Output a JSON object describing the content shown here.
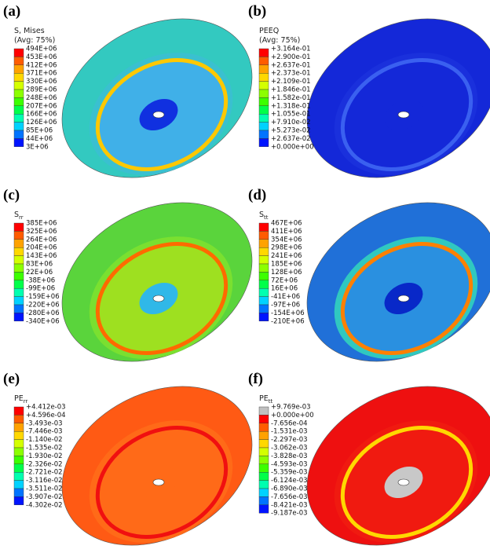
{
  "panels": [
    {
      "label": "(a)",
      "legend_title": [
        "S, Mises",
        "(Avg: 75%)"
      ],
      "legend_labels": [
        "494E+06",
        "453E+06",
        "412E+06",
        "371E+06",
        "330E+06",
        "289E+06",
        "248E+06",
        "207E+06",
        "166E+06",
        "126E+06",
        "85E+06",
        "44E+06",
        "3E+06"
      ]
    },
    {
      "label": "(b)",
      "legend_title": [
        "PEEQ",
        "(Avg: 75%)"
      ],
      "legend_labels": [
        "+3.164e-01",
        "+2.900e-01",
        "+2.637e-01",
        "+2.373e-01",
        "+2.109e-01",
        "+1.846e-01",
        "+1.582e-01",
        "+1.318e-01",
        "+1.055e-01",
        "+7.910e-02",
        "+5.273e-02",
        "+2.637e-02",
        "+0.000e+00"
      ]
    },
    {
      "label": "(c)",
      "legend_title": [
        "S"
      ],
      "legend_subscript": "rr",
      "legend_labels": [
        "385E+06",
        "325E+06",
        "264E+06",
        "204E+06",
        "143E+06",
        "83E+06",
        "22E+06",
        "-38E+06",
        "-99E+06",
        "-159E+06",
        "-220E+06",
        "-280E+06",
        "-340E+06"
      ]
    },
    {
      "label": "(d)",
      "legend_title": [
        "S"
      ],
      "legend_subscript": "tt",
      "legend_labels": [
        "467E+06",
        "411E+06",
        "354E+06",
        "298E+06",
        "241E+06",
        "185E+06",
        "128E+06",
        "72E+06",
        "16E+06",
        "-41E+06",
        "-97E+06",
        "-154E+06",
        "-210E+06"
      ]
    },
    {
      "label": "(e)",
      "legend_title": [
        "PE"
      ],
      "legend_subscript": "rr",
      "legend_labels": [
        "+4.412e-03",
        "+4.596e-04",
        "-3.493e-03",
        "-7.446e-03",
        "-1.140e-02",
        "-1.535e-02",
        "-1.930e-02",
        "-2.326e-02",
        "-2.721e-02",
        "-3.116e-02",
        "-3.511e-02",
        "-3.907e-02",
        "-4.302e-02"
      ]
    },
    {
      "label": "(f)",
      "legend_title": [
        "PE"
      ],
      "legend_subscript": "tt",
      "legend_labels": [
        "+9.769e-03",
        "+0.000e+00",
        "-7.656e-04",
        "-1.531e-03",
        "-2.297e-03",
        "-3.062e-03",
        "-3.828e-03",
        "-4.593e-03",
        "-5.359e-03",
        "-6.124e-03",
        "-6.890e-03",
        "-7.656e-03",
        "-8.421e-03",
        "-9.187e-03"
      ]
    }
  ]
}
